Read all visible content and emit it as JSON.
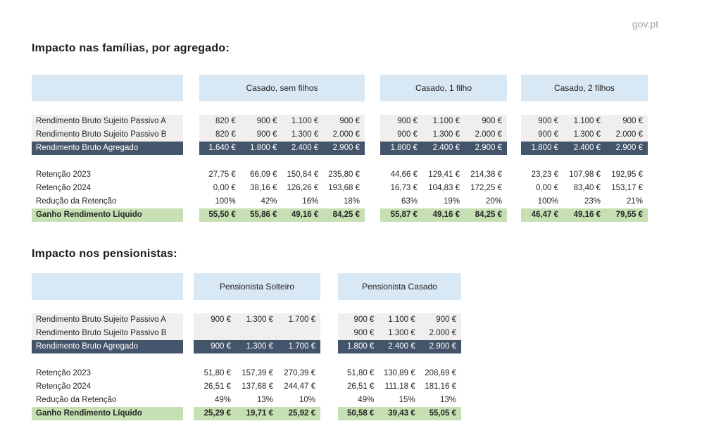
{
  "page": {
    "brand": "gov.pt"
  },
  "colors": {
    "header_blue": "#d9e8f5",
    "row_gray": "#f0efed",
    "aggregate_dark_blue": "#44546a",
    "gain_green": "#c6e0b4",
    "text_dark": "#262626",
    "brand_gray": "#9e9e9e"
  },
  "row_labels": [
    "Rendimento Bruto Sujeito Passivo A",
    "Rendimento Bruto Sujeito Passivo B",
    "Rendimento Bruto Agregado",
    "Retenção 2023",
    "Retenção 2024",
    "Redução da Retenção",
    "Ganho Rendimento Líquido"
  ],
  "sections": [
    {
      "title": "Impacto nas famílias, por agregado:",
      "groups": [
        {
          "header": "Casado, sem filhos",
          "rows": [
            [
              "820 €",
              "900 €",
              "1.100 €",
              "900 €"
            ],
            [
              "820 €",
              "900 €",
              "1.300 €",
              "2.000 €"
            ],
            [
              "1.640 €",
              "1.800 €",
              "2.400 €",
              "2.900 €"
            ],
            [
              "27,75 €",
              "66,09 €",
              "150,84 €",
              "235,80 €"
            ],
            [
              "0,00 €",
              "38,16 €",
              "126,26 €",
              "193,68 €"
            ],
            [
              "100%",
              "42%",
              "16%",
              "18%"
            ],
            [
              "55,50 €",
              "55,86 €",
              "49,16 €",
              "84,25 €"
            ]
          ]
        },
        {
          "header": "Casado, 1 filho",
          "rows": [
            [
              "900 €",
              "1.100 €",
              "900 €"
            ],
            [
              "900 €",
              "1.300 €",
              "2.000 €"
            ],
            [
              "1.800 €",
              "2.400 €",
              "2.900 €"
            ],
            [
              "44,66 €",
              "129,41 €",
              "214,38 €"
            ],
            [
              "16,73 €",
              "104,83 €",
              "172,25 €"
            ],
            [
              "63%",
              "19%",
              "20%"
            ],
            [
              "55,87 €",
              "49,16 €",
              "84,25 €"
            ]
          ]
        },
        {
          "header": "Casado, 2 filhos",
          "rows": [
            [
              "900 €",
              "1.100 €",
              "900 €"
            ],
            [
              "900 €",
              "1.300 €",
              "2.000 €"
            ],
            [
              "1.800 €",
              "2.400 €",
              "2.900 €"
            ],
            [
              "23,23 €",
              "107,98 €",
              "192,95 €"
            ],
            [
              "0,00 €",
              "83,40 €",
              "153,17 €"
            ],
            [
              "100%",
              "23%",
              "21%"
            ],
            [
              "46,47 €",
              "49,16 €",
              "79,55 €"
            ]
          ]
        }
      ]
    },
    {
      "title": "Impacto nos pensionistas:",
      "groups": [
        {
          "header": "Pensionista Solteiro",
          "rows": [
            [
              "900 €",
              "1.300 €",
              "1.700 €"
            ],
            [
              "",
              "",
              ""
            ],
            [
              "900 €",
              "1.300 €",
              "1.700 €"
            ],
            [
              "51,80 €",
              "157,39 €",
              "270,39 €"
            ],
            [
              "26,51 €",
              "137,68 €",
              "244,47 €"
            ],
            [
              "49%",
              "13%",
              "10%"
            ],
            [
              "25,29 €",
              "19,71 €",
              "25,92 €"
            ]
          ]
        },
        {
          "header": "Pensionista Casado",
          "rows": [
            [
              "900 €",
              "1.100 €",
              "900 €"
            ],
            [
              "900 €",
              "1.300 €",
              "2.000 €"
            ],
            [
              "1.800 €",
              "2.400 €",
              "2.900 €"
            ],
            [
              "51,80 €",
              "130,89 €",
              "208,69 €"
            ],
            [
              "26,51 €",
              "111,18 €",
              "181,16 €"
            ],
            [
              "49%",
              "15%",
              "13%"
            ],
            [
              "50,58 €",
              "39,43 €",
              "55,05 €"
            ]
          ]
        }
      ]
    }
  ]
}
